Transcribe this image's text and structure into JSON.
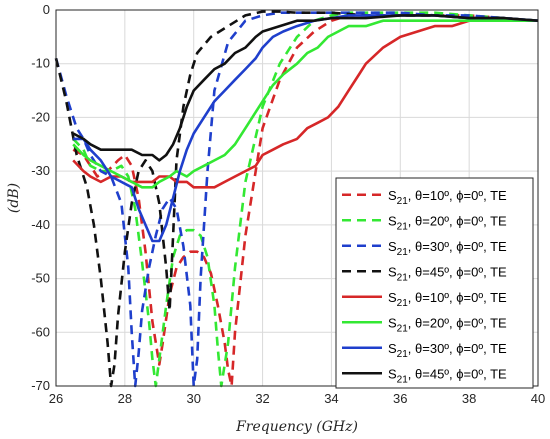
{
  "chart_data": {
    "type": "line",
    "title": "",
    "xlabel": "Frequency (GHz)",
    "ylabel": "(dB)",
    "xlim": [
      26,
      40
    ],
    "ylim": [
      -70,
      0
    ],
    "xticks": [
      "26",
      "28",
      "30",
      "32",
      "34",
      "36",
      "38",
      "40"
    ],
    "yticks": [
      "0",
      "-10",
      "-20",
      "-30",
      "-40",
      "-50",
      "-60",
      "-70"
    ],
    "grid": true,
    "legend_position": "bottom-right",
    "series": [
      {
        "name": "S21, θ=10º, ϕ=0º, TE",
        "legend": {
          "base": "S",
          "sub": "21",
          "rest": ", θ=10º,  ϕ=0º, TE"
        },
        "color": "#d62728",
        "dashed": true,
        "x": [
          26.5,
          26.8,
          27.0,
          27.2,
          27.5,
          27.8,
          28.0,
          28.2,
          28.4,
          28.6,
          28.8,
          29.0,
          29.1,
          29.3,
          29.5,
          29.7,
          29.9,
          30.1,
          30.3,
          30.5,
          30.7,
          30.9,
          31.0,
          31.1,
          31.2,
          31.5,
          31.8,
          32.0,
          32.5,
          33.0,
          33.5,
          34.0,
          34.5,
          35.0,
          36.0,
          37.0,
          38.0,
          39.0,
          40.0
        ],
        "y": [
          -26,
          -27,
          -29,
          -31,
          -30,
          -28,
          -27,
          -29,
          -35,
          -45,
          -58,
          -66,
          -62,
          -53,
          -48,
          -46,
          -45,
          -45,
          -46,
          -49,
          -55,
          -62,
          -67,
          -70,
          -60,
          -42,
          -30,
          -22,
          -13,
          -7,
          -4,
          -2,
          -1,
          -1,
          -1,
          -1,
          -1,
          -1.5,
          -2
        ]
      },
      {
        "name": "S21, θ=20º, ϕ=0º, TE",
        "legend": {
          "base": "S",
          "sub": "21",
          "rest": ", θ=20º,  ϕ=0º, TE"
        },
        "color": "#33e833",
        "dashed": true,
        "x": [
          26.5,
          26.8,
          27.0,
          27.3,
          27.6,
          27.9,
          28.1,
          28.3,
          28.5,
          28.7,
          28.8,
          28.9,
          29.0,
          29.2,
          29.4,
          29.6,
          29.8,
          30.0,
          30.2,
          30.4,
          30.6,
          30.7,
          30.8,
          31.0,
          31.2,
          31.5,
          32.0,
          32.5,
          33.0,
          33.5,
          34.0,
          34.5,
          35.0,
          36.0,
          37.0,
          38.0,
          39.0,
          40.0
        ],
        "y": [
          -24,
          -26,
          -29,
          -30,
          -30,
          -29,
          -31,
          -37,
          -47,
          -58,
          -65,
          -70,
          -65,
          -55,
          -46,
          -42,
          -41,
          -41,
          -42,
          -46,
          -55,
          -63,
          -70,
          -62,
          -48,
          -32,
          -18,
          -10,
          -5,
          -2,
          -1,
          -0.5,
          -0.5,
          -0.5,
          -0.5,
          -1,
          -1.5,
          -2
        ]
      },
      {
        "name": "S21, θ=30º, ϕ=0º, TE",
        "legend": {
          "base": "S",
          "sub": "21",
          "rest": ", θ=30º,  ϕ=0º, TE"
        },
        "color": "#1f3fcc",
        "dashed": true,
        "x": [
          26.0,
          26.3,
          26.6,
          26.8,
          27.0,
          27.3,
          27.6,
          27.9,
          28.1,
          28.2,
          28.3,
          28.4,
          28.5,
          28.7,
          28.9,
          29.1,
          29.3,
          29.5,
          29.7,
          29.9,
          30.0,
          30.1,
          30.2,
          30.4,
          30.6,
          31.0,
          31.5,
          32.0,
          32.5,
          33.0,
          34.0,
          35.0,
          36.0,
          37.0,
          38.0,
          39.0,
          40.0
        ],
        "y": [
          -9,
          -16,
          -22,
          -24,
          -27,
          -30,
          -31,
          -36,
          -48,
          -60,
          -70,
          -64,
          -56,
          -48,
          -42,
          -37,
          -35,
          -37,
          -44,
          -55,
          -70,
          -65,
          -50,
          -30,
          -15,
          -6,
          -2,
          -1,
          -0.5,
          -0.5,
          -0.5,
          -0.5,
          -0.5,
          -1,
          -1,
          -1.5,
          -2
        ]
      },
      {
        "name": "S21, θ=45º, ϕ=0º, TE",
        "legend": {
          "base": "S",
          "sub": "21",
          "rest": ", θ=45º,  ϕ=0º, TE"
        },
        "color": "#111111",
        "dashed": true,
        "x": [
          26.0,
          26.3,
          26.6,
          26.9,
          27.1,
          27.3,
          27.5,
          27.6,
          27.7,
          27.8,
          28.0,
          28.2,
          28.4,
          28.6,
          28.8,
          29.0,
          29.2,
          29.3,
          29.4,
          29.5,
          29.7,
          29.9,
          30.1,
          30.5,
          31.0,
          31.5,
          32.0,
          32.5,
          33.0,
          34.0,
          35.0,
          36.0,
          37.0,
          38.0,
          39.0,
          40.0
        ],
        "y": [
          -9,
          -17,
          -27,
          -33,
          -40,
          -50,
          -62,
          -70,
          -66,
          -57,
          -45,
          -36,
          -30,
          -28,
          -30,
          -36,
          -48,
          -56,
          -42,
          -28,
          -18,
          -12,
          -8,
          -5,
          -3,
          -1,
          -0.3,
          -0.3,
          -0.5,
          -0.5,
          -1,
          -1,
          -1,
          -1.5,
          -1.5,
          -2
        ]
      },
      {
        "name": "S21, θ=10º, ϕ=0º, TE",
        "legend": {
          "base": "S",
          "sub": "21",
          "rest": ", θ=10º,  ϕ=0º, TE"
        },
        "color": "#d62728",
        "dashed": false,
        "x": [
          26.5,
          26.8,
          27.0,
          27.3,
          27.6,
          27.9,
          28.2,
          28.5,
          28.8,
          29.0,
          29.3,
          29.5,
          29.8,
          30.0,
          30.3,
          30.6,
          30.9,
          31.2,
          31.5,
          31.8,
          32.0,
          32.3,
          32.6,
          33.0,
          33.3,
          33.6,
          33.9,
          34.2,
          34.5,
          34.8,
          35.0,
          35.5,
          36.0,
          36.5,
          37.0,
          37.5,
          38.0,
          38.5,
          39.0,
          39.5,
          40.0
        ],
        "y": [
          -28,
          -30,
          -31,
          -32,
          -31,
          -31,
          -32,
          -32,
          -32,
          -31,
          -31,
          -32,
          -32,
          -33,
          -33,
          -33,
          -32,
          -31,
          -30,
          -29,
          -27,
          -26,
          -25,
          -24,
          -22,
          -21,
          -20,
          -18,
          -15,
          -12,
          -10,
          -7,
          -5,
          -4,
          -3,
          -3,
          -2,
          -2,
          -2,
          -2,
          -2
        ]
      },
      {
        "name": "S21, θ=20º, ϕ=0º, TE",
        "legend": {
          "base": "S",
          "sub": "21",
          "rest": ", θ=20º,  ϕ=0º, TE"
        },
        "color": "#33e833",
        "dashed": false,
        "x": [
          26.5,
          26.8,
          27.0,
          27.3,
          27.6,
          27.9,
          28.2,
          28.5,
          28.8,
          29.0,
          29.3,
          29.5,
          29.8,
          30.0,
          30.3,
          30.6,
          30.9,
          31.2,
          31.5,
          31.8,
          32.0,
          32.3,
          32.6,
          33.0,
          33.3,
          33.6,
          33.9,
          34.2,
          34.5,
          35.0,
          35.5,
          36.0,
          36.5,
          37.0,
          38.0,
          39.0,
          40.0
        ],
        "y": [
          -25,
          -27,
          -28,
          -29,
          -30,
          -31,
          -32,
          -33,
          -33,
          -32,
          -31,
          -30,
          -31,
          -30,
          -29,
          -28,
          -27,
          -25,
          -22,
          -19,
          -17,
          -14,
          -12,
          -10,
          -8,
          -7,
          -5,
          -4,
          -3,
          -3,
          -2,
          -2,
          -2,
          -2,
          -2,
          -2,
          -2
        ]
      },
      {
        "name": "S21, θ=30º, ϕ=0º, TE",
        "legend": {
          "base": "S",
          "sub": "21",
          "rest": ", θ=30º,  ϕ=0º, TE"
        },
        "color": "#1f3fcc",
        "dashed": false,
        "x": [
          26.5,
          26.8,
          27.0,
          27.3,
          27.6,
          27.9,
          28.2,
          28.4,
          28.6,
          28.8,
          29.0,
          29.2,
          29.4,
          29.6,
          29.8,
          30.0,
          30.3,
          30.6,
          30.9,
          31.2,
          31.5,
          31.8,
          32.0,
          32.3,
          32.6,
          33.0,
          33.5,
          34.0,
          34.5,
          35.0,
          36.0,
          37.0,
          38.0,
          39.0,
          40.0
        ],
        "y": [
          -24,
          -24,
          -26,
          -28,
          -31,
          -32,
          -33,
          -37,
          -40,
          -43,
          -43,
          -40,
          -35,
          -30,
          -26,
          -23,
          -20,
          -17,
          -15,
          -13,
          -11,
          -9,
          -7,
          -5,
          -4,
          -3,
          -2,
          -1.5,
          -1,
          -1,
          -1,
          -1,
          -1.5,
          -1.5,
          -2
        ]
      },
      {
        "name": "S21, θ=45º, ϕ=0º, TE",
        "legend": {
          "base": "S",
          "sub": "21",
          "rest": ", θ=45º,  ϕ=0º, TE"
        },
        "color": "#111111",
        "dashed": false,
        "x": [
          26.5,
          26.8,
          27.0,
          27.3,
          27.6,
          27.9,
          28.2,
          28.5,
          28.8,
          29.0,
          29.2,
          29.4,
          29.6,
          29.8,
          30.0,
          30.3,
          30.6,
          30.9,
          31.2,
          31.5,
          31.8,
          32.0,
          32.5,
          33.0,
          33.5,
          34.0,
          34.5,
          35.0,
          36.0,
          37.0,
          38.0,
          39.0,
          40.0
        ],
        "y": [
          -23,
          -24,
          -25,
          -26,
          -26,
          -26,
          -26,
          -27,
          -27,
          -28,
          -27,
          -25,
          -22,
          -18,
          -15,
          -13,
          -11,
          -10,
          -8,
          -7,
          -5,
          -4,
          -3,
          -2,
          -2,
          -1.5,
          -1.5,
          -1.5,
          -1,
          -1,
          -1.5,
          -1.5,
          -2
        ]
      }
    ]
  }
}
